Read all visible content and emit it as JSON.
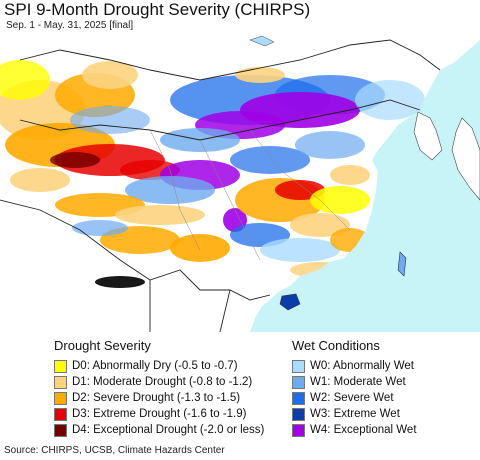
{
  "header": {
    "title": "SPI 9-Month Drought Severity (CHIRPS)",
    "subtitle": "Sep. 1 - May. 31, 2025 [final]"
  },
  "legend": {
    "drought": {
      "title": "Drought Severity",
      "items": [
        {
          "label": "D0: Abnormally Dry (-0.5 to -0.7)",
          "color": "#ffff00"
        },
        {
          "label": "D1: Moderate Drought (-0.8 to -1.2)",
          "color": "#fcd37f"
        },
        {
          "label": "D2: Severe Drought (-1.3 to -1.5)",
          "color": "#ffaa00"
        },
        {
          "label": "D3: Extreme Drought (-1.6 to -1.9)",
          "color": "#e60000"
        },
        {
          "label": "D4: Exceptional Drought (-2.0 or less)",
          "color": "#730000"
        }
      ]
    },
    "wet": {
      "title": "Wet Conditions",
      "items": [
        {
          "label": "W0: Abnormally Wet",
          "color": "#aadcff"
        },
        {
          "label": "W1: Moderate Wet",
          "color": "#6eaaf0"
        },
        {
          "label": "W2: Severe Wet",
          "color": "#1e6eeb"
        },
        {
          "label": "W3: Extreme Wet",
          "color": "#0a3caa"
        },
        {
          "label": "W4: Exceptional Wet",
          "color": "#a000e6"
        }
      ]
    }
  },
  "footer": {
    "source": "Source: CHIRPS, UCSB, Climate Hazards Center"
  },
  "map": {
    "land_color": "#ffffff",
    "ocean_color": "#c8f4f8",
    "border_color": "#222222"
  }
}
